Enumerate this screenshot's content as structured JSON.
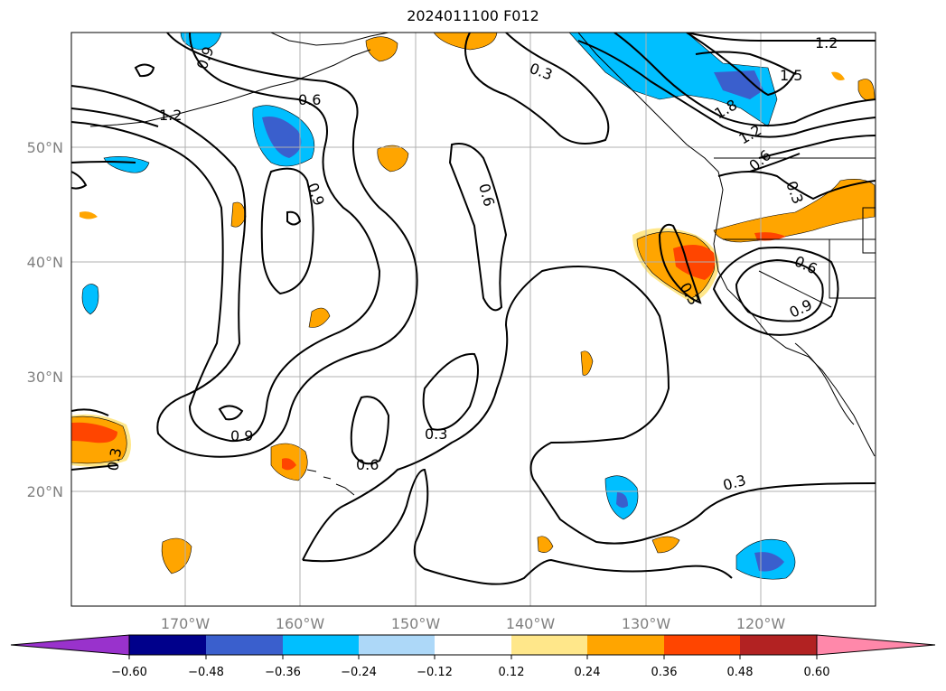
{
  "title": "2024011100 F012",
  "map": {
    "projection": "plate-carree",
    "lat_labels": [
      "50°N",
      "40°N",
      "30°N",
      "20°N"
    ],
    "lon_labels": [
      "170°W",
      "160°W",
      "150°W",
      "140°W",
      "130°W",
      "120°W"
    ],
    "contour_labels": [
      "1.2",
      "0.9",
      "0.6",
      "1.2",
      "0.3",
      "1.5",
      "1.8",
      "1.2",
      "0.6",
      "0.9",
      "0.6",
      "0.3",
      "0.6",
      "0.9",
      "0.3",
      "0.9",
      "0.3",
      "0.6",
      "0.3",
      "0.3"
    ]
  },
  "colorbar": {
    "ticks": [
      "−0.60",
      "−0.48",
      "−0.36",
      "−0.24",
      "−0.12",
      "0.12",
      "0.24",
      "0.36",
      "0.48",
      "0.60"
    ],
    "colors": [
      "#9932cc",
      "#00008b",
      "#3a5fcd",
      "#00bfff",
      "#add8f8",
      "#ffffff",
      "#ffe78a",
      "#ffa500",
      "#ff4500",
      "#b22222",
      "#ff88aa"
    ]
  }
}
